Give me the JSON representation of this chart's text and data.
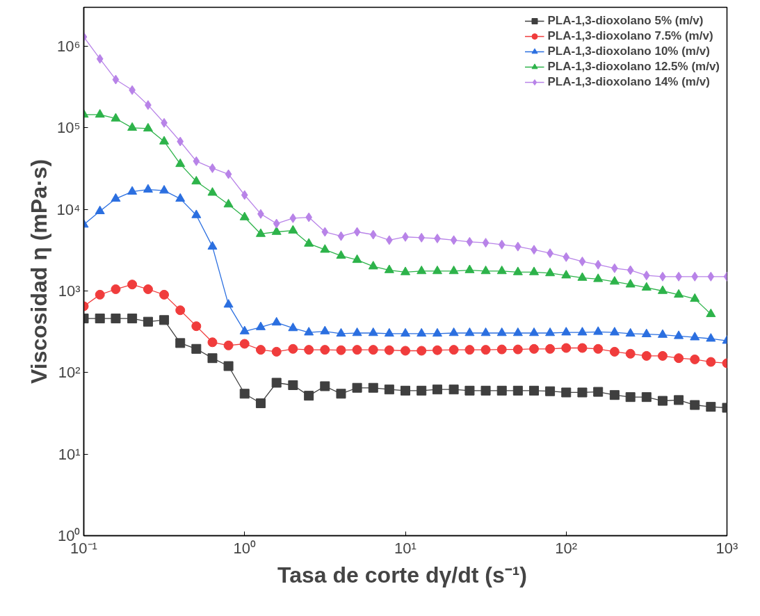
{
  "chart_data": {
    "type": "line",
    "xlabel": "Tasa de corte dγ/dt  (s⁻¹)",
    "ylabel": "Viscosidad η (mPa·s)",
    "log": "xy",
    "grid": false,
    "legend": "top right",
    "xlim": [
      0.1,
      1000
    ],
    "ylim": [
      1,
      3000000
    ],
    "xticks": [
      {
        "value": 0.1,
        "label": "10⁻¹"
      },
      {
        "value": 1,
        "label": "10⁰"
      },
      {
        "value": 10,
        "label": "10¹"
      },
      {
        "value": 100,
        "label": "10²"
      },
      {
        "value": 1000,
        "label": "10³"
      }
    ],
    "yticks": [
      {
        "value": 1,
        "label": "10⁰"
      },
      {
        "value": 10,
        "label": "10¹"
      },
      {
        "value": 100,
        "label": "10²"
      },
      {
        "value": 1000,
        "label": "10³"
      },
      {
        "value": 10000,
        "label": "10⁴"
      },
      {
        "value": 100000,
        "label": "10⁵"
      },
      {
        "value": 1000000,
        "label": "10⁶"
      }
    ],
    "x": [
      0.1,
      0.126,
      0.158,
      0.2,
      0.251,
      0.316,
      0.398,
      0.501,
      0.631,
      0.794,
      1,
      1.26,
      1.58,
      2,
      2.51,
      3.16,
      3.98,
      5.01,
      6.31,
      7.94,
      10,
      12.6,
      15.8,
      20,
      25.1,
      31.6,
      39.8,
      50.1,
      63.1,
      79.4,
      100,
      126,
      158,
      200,
      251,
      316,
      398,
      501,
      631,
      794,
      1000
    ],
    "series": [
      {
        "name": "PLA-1,3-dioxolano 5% (m/v)",
        "color": "#3f3f3f",
        "marker": "square",
        "values": [
          460,
          460,
          460,
          460,
          420,
          440,
          230,
          195,
          150,
          120,
          55,
          42,
          75,
          70,
          52,
          68,
          55,
          65,
          65,
          62,
          60,
          60,
          62,
          62,
          60,
          60,
          60,
          60,
          60,
          59,
          57,
          57,
          58,
          53,
          50,
          50,
          45,
          46,
          40,
          38,
          37
        ]
      },
      {
        "name": "PLA-1,3-dioxolano 7.5% (m/v)",
        "color": "#f03c3c",
        "marker": "circle",
        "values": [
          650,
          900,
          1050,
          1200,
          1050,
          900,
          580,
          370,
          235,
          215,
          225,
          190,
          180,
          195,
          190,
          190,
          188,
          190,
          190,
          188,
          185,
          185,
          188,
          190,
          190,
          190,
          192,
          192,
          195,
          195,
          200,
          200,
          195,
          180,
          170,
          160,
          160,
          150,
          145,
          135,
          130
        ]
      },
      {
        "name": "PLA-1,3-dioxolano 10% (m/v)",
        "color": "#2b6fe0",
        "marker": "triangle",
        "values": [
          6500,
          9500,
          13500,
          16500,
          17500,
          17000,
          13500,
          8500,
          3500,
          680,
          320,
          360,
          410,
          350,
          310,
          320,
          300,
          305,
          305,
          300,
          300,
          300,
          300,
          305,
          305,
          305,
          305,
          305,
          305,
          305,
          310,
          310,
          315,
          310,
          300,
          295,
          290,
          280,
          270,
          260,
          245
        ]
      },
      {
        "name": "PLA-1,3-dioxolano 12.5% (m/v)",
        "color": "#2db34a",
        "marker": "triangle",
        "values": [
          145000,
          145000,
          130000,
          100000,
          98000,
          68000,
          36000,
          22000,
          16000,
          11500,
          8000,
          5000,
          5300,
          5500,
          3800,
          3200,
          2700,
          2400,
          2000,
          1800,
          1700,
          1750,
          1750,
          1750,
          1800,
          1750,
          1750,
          1700,
          1700,
          1650,
          1550,
          1450,
          1400,
          1300,
          1200,
          1100,
          1000,
          900,
          800,
          520,
          null
        ]
      },
      {
        "name": "PLA-1,3-dioxolano 14% (m/v)",
        "color": "#b883e8",
        "marker": "diamond",
        "values": [
          1300000,
          700000,
          390000,
          290000,
          190000,
          115000,
          68000,
          39000,
          32000,
          27000,
          15000,
          8800,
          6700,
          7800,
          8000,
          5300,
          4700,
          5300,
          4900,
          4200,
          4600,
          4500,
          4400,
          4200,
          4000,
          3900,
          3700,
          3500,
          3200,
          2900,
          2600,
          2300,
          2100,
          1900,
          1800,
          1550,
          1500,
          1500,
          1500,
          1500,
          1500
        ]
      }
    ]
  }
}
